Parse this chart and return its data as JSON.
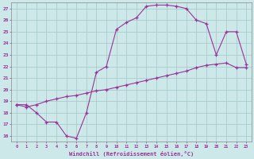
{
  "xlabel": "Windchill (Refroidissement éolien,°C)",
  "xlim": [
    -0.5,
    23.5
  ],
  "ylim": [
    15.5,
    27.5
  ],
  "xticks": [
    0,
    1,
    2,
    3,
    4,
    5,
    6,
    7,
    8,
    9,
    10,
    11,
    12,
    13,
    14,
    15,
    16,
    17,
    18,
    19,
    20,
    21,
    22,
    23
  ],
  "yticks": [
    16,
    17,
    18,
    19,
    20,
    21,
    22,
    23,
    24,
    25,
    26,
    27
  ],
  "bg_color": "#cce8e8",
  "grid_color": "#aacccc",
  "line_color": "#993399",
  "line1_x": [
    0,
    1,
    2,
    3,
    4,
    5,
    6,
    7,
    8,
    9,
    10,
    11,
    12,
    13,
    14,
    15,
    16,
    17,
    18,
    19,
    20,
    21,
    22,
    23
  ],
  "line1_y": [
    18.7,
    18.7,
    18.0,
    17.2,
    17.2,
    16.0,
    15.8,
    18.0,
    21.5,
    22.0,
    25.2,
    25.8,
    26.2,
    27.2,
    27.3,
    27.3,
    27.2,
    27.0,
    26.0,
    25.7,
    23.0,
    25.0,
    25.0,
    22.2
  ],
  "line2_x": [
    0,
    1,
    2,
    3,
    4,
    5,
    6,
    7,
    8,
    9,
    10,
    11,
    12,
    13,
    14,
    15,
    16,
    17,
    18,
    19,
    20,
    21,
    22,
    23
  ],
  "line2_y": [
    18.7,
    18.5,
    18.7,
    19.0,
    19.2,
    19.4,
    19.5,
    19.7,
    19.9,
    20.0,
    20.2,
    20.4,
    20.6,
    20.8,
    21.0,
    21.2,
    21.4,
    21.6,
    21.9,
    22.1,
    22.2,
    22.3,
    21.9,
    21.9
  ]
}
